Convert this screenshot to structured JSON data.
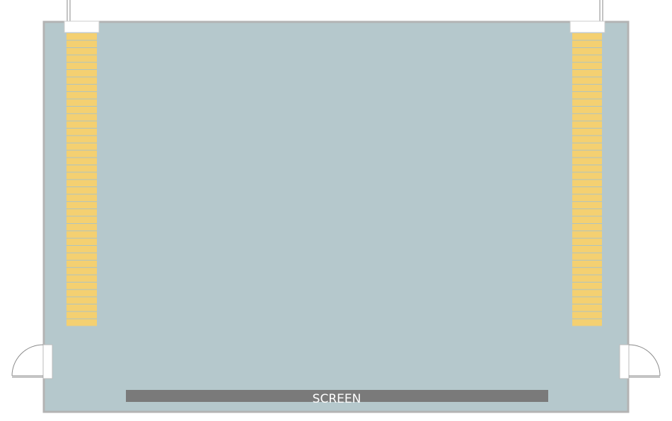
{
  "screen": {
    "label": "SCREEN"
  },
  "colors": {
    "floor": "#b5c8cc",
    "wall": "#b3b3b3",
    "seat": "#f4d071",
    "seat_divider": "#a9c2c6",
    "screen": "#7a7a7a",
    "door": "#ffffff",
    "door_stroke": "#8a8a8a"
  },
  "seating": {
    "left_block": {
      "row_count": 40
    },
    "right_block": {
      "row_count": 40
    }
  }
}
